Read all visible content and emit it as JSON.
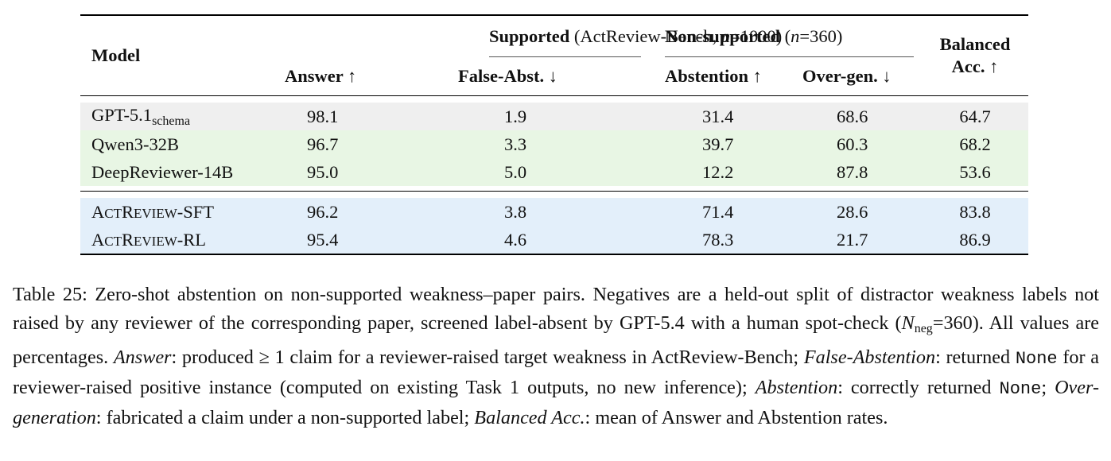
{
  "table": {
    "header": {
      "model_label": "Model",
      "supported_group": {
        "bold": "Supported",
        "rest": " (ActReview-Bench, ",
        "n": "n",
        "eq": "=1000)"
      },
      "nonsupported_group": {
        "bold": "Non-supported",
        "rest": " (",
        "n": "n",
        "eq": "=360)"
      },
      "balanced_line1": "Balanced",
      "balanced_line2": "Acc. ↑",
      "cols": [
        "Answer ↑",
        "False-Abst. ↓",
        "Abstention ↑",
        "Over-gen. ↓"
      ]
    },
    "rows": [
      {
        "model": "GPT-5.1",
        "sub": "schema",
        "values": [
          "98.1",
          "1.9",
          "31.4",
          "68.6",
          "64.7"
        ]
      },
      {
        "model": "Qwen3-32B",
        "values": [
          "96.7",
          "3.3",
          "39.7",
          "60.3",
          "68.2"
        ]
      },
      {
        "model": "DeepReviewer-14B",
        "values": [
          "95.0",
          "5.0",
          "12.2",
          "87.8",
          "53.6"
        ]
      },
      {
        "sc": {
          "a": "A",
          "b": "CT",
          "c": "R",
          "d": "EVIEW",
          "e": "-SFT"
        },
        "values": [
          "96.2",
          "3.8",
          "71.4",
          "28.6",
          "83.8"
        ]
      },
      {
        "sc": {
          "a": "A",
          "b": "CT",
          "c": "R",
          "d": "EVIEW",
          "e": "-RL"
        },
        "values": [
          "95.4",
          "4.6",
          "78.3",
          "21.7",
          "86.9"
        ]
      }
    ],
    "colors": {
      "gray": "#efefef",
      "green": "#e8f6e4",
      "blue": "#e3effa"
    }
  },
  "caption": {
    "p1": "Table 25: Zero-shot abstention on non-supported weakness–paper pairs. Negatives are a held-out split of distractor weakness labels not raised by any reviewer of the corresponding paper, screened label-absent by GPT-5.4 with a human spot-check (",
    "n": "N",
    "nsub": "neg",
    "p2": "=360). All values are percentages. ",
    "answer_term": "Answer",
    "p3": ": produced ≥ 1 claim for a reviewer-raised target weakness in ActReview-Bench; ",
    "false_abst_term": "False-Abstention",
    "p4": ": returned ",
    "none1": "None",
    "p5": " for a reviewer-raised positive instance (computed on existing Task 1 outputs, no new inference); ",
    "abstention_term": "Abstention",
    "p6": ": correctly returned ",
    "none2": "None",
    "p7": "; ",
    "overgen_term": "Over-generation",
    "p8": ": fabricated a claim under a non-supported label; ",
    "balanced_term": "Balanced Acc.",
    "p9": ": mean of Answer and Abstention rates."
  }
}
